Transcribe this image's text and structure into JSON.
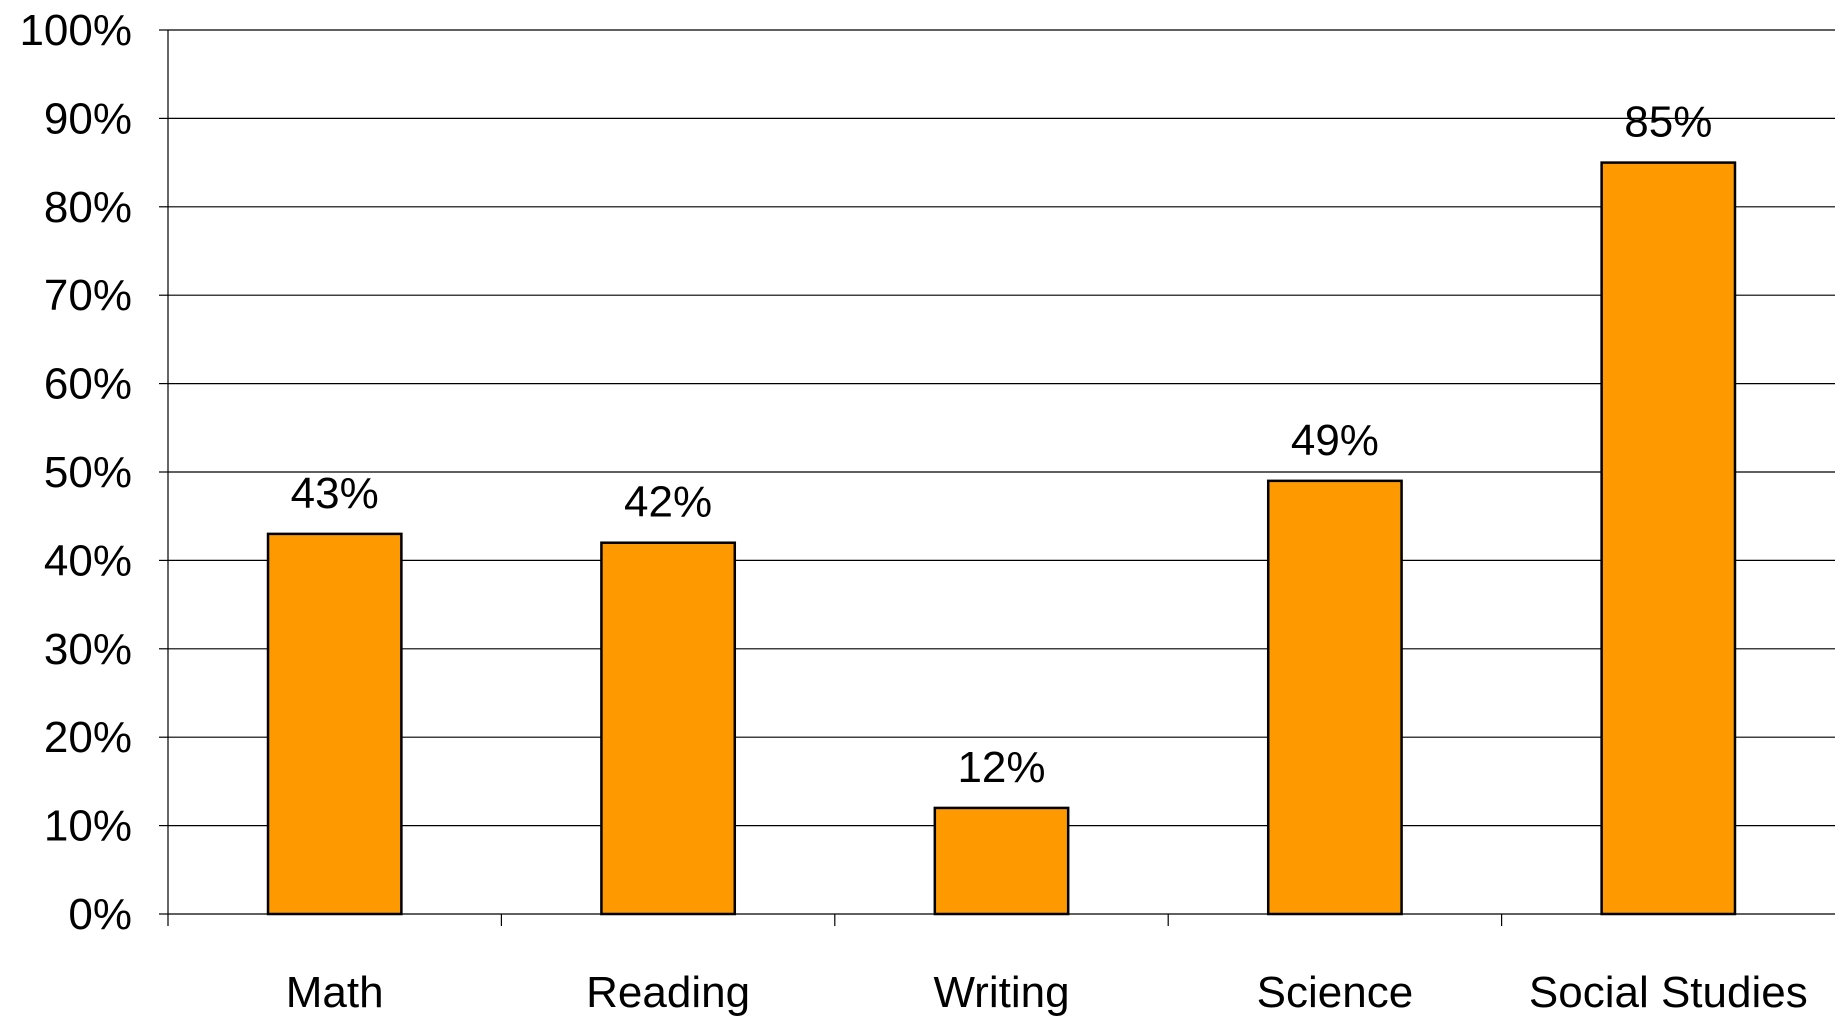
{
  "chart_data": {
    "type": "bar",
    "categories": [
      "Math",
      "Reading",
      "Writing",
      "Science",
      "Social Studies"
    ],
    "values": [
      43,
      42,
      12,
      49,
      85
    ],
    "data_labels": [
      "43%",
      "42%",
      "12%",
      "49%",
      "85%"
    ],
    "yticks": [
      "0%",
      "10%",
      "20%",
      "30%",
      "40%",
      "50%",
      "60%",
      "70%",
      "80%",
      "90%",
      "100%"
    ],
    "ylim": [
      0,
      100
    ],
    "grid": true,
    "legend": "none",
    "bar_color": "#FF9900",
    "bar_border_color": "#000000",
    "grid_color": "#000000"
  }
}
